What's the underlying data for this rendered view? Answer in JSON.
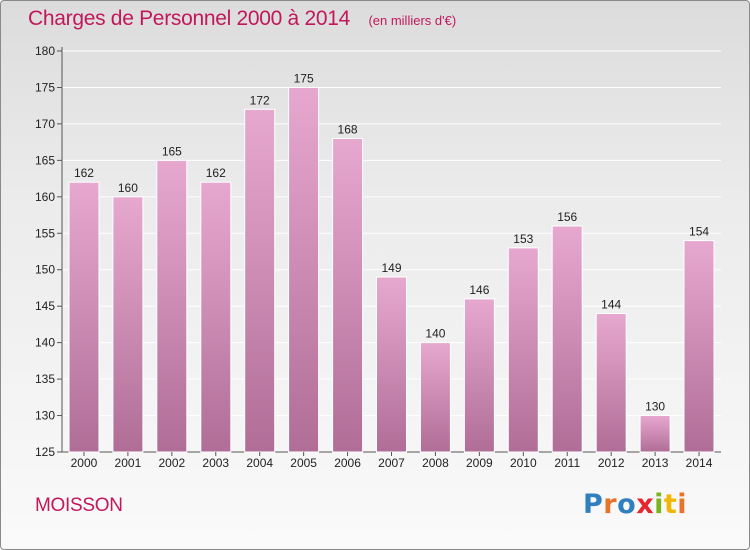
{
  "title": "Charges de Personnel 2000 à 2014",
  "subtitle": "(en milliers d'€)",
  "commune": "MOISSON",
  "brand": {
    "text": "Proxiti",
    "letter_colors": [
      "#2f7fc1",
      "#e8742a",
      "#2f7fc1",
      "#e4262f",
      "#7ab51d",
      "#f2b705",
      "#e8742a"
    ]
  },
  "colors": {
    "accent": "#c2185b",
    "bar_top": "#e7a8cf",
    "bar_bottom": "#b06e97"
  },
  "chart_data": {
    "type": "bar",
    "categories": [
      "2000",
      "2001",
      "2002",
      "2003",
      "2004",
      "2005",
      "2006",
      "2007",
      "2008",
      "2009",
      "2010",
      "2011",
      "2012",
      "2013",
      "2014"
    ],
    "values": [
      162,
      160,
      165,
      162,
      172,
      175,
      168,
      149,
      140,
      146,
      153,
      156,
      144,
      130,
      154
    ],
    "ylim": [
      125,
      180
    ],
    "yticks": [
      125,
      130,
      135,
      140,
      145,
      150,
      155,
      160,
      165,
      170,
      175,
      180
    ],
    "grid": true
  }
}
